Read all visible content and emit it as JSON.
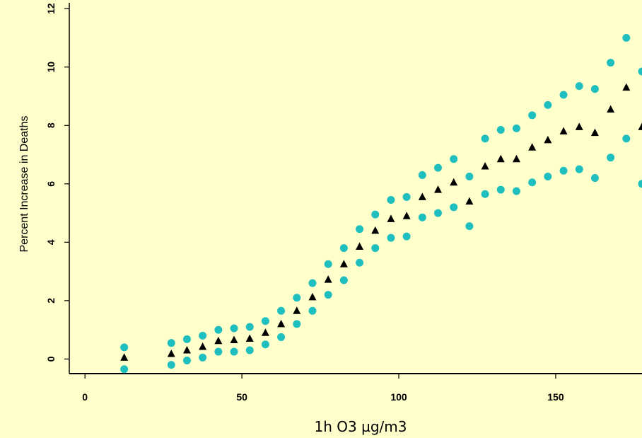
{
  "chart_data": {
    "type": "scatter",
    "xlabel": "1h O3 µg/m3",
    "ylabel": "Percent Increase in Deaths",
    "xlim": [
      -5,
      177.5
    ],
    "ylim": [
      -0.5,
      12.2
    ],
    "x_ticks": [
      0,
      50,
      100,
      150
    ],
    "y_ticks": [
      0,
      2,
      4,
      6,
      8,
      10,
      12
    ],
    "grid": false,
    "colors": {
      "background": "#ffffcc",
      "ci": "#1fbfbf",
      "estimate": "#000000"
    },
    "x": [
      12.5,
      27.5,
      32.5,
      37.5,
      42.5,
      47.5,
      52.5,
      57.5,
      62.5,
      67.5,
      72.5,
      77.5,
      82.5,
      87.5,
      92.5,
      97.5,
      102.5,
      107.5,
      112.5,
      117.5,
      122.5,
      127.5,
      132.5,
      137.5,
      142.5,
      147.5,
      152.5,
      157.5,
      162.5,
      167.5,
      172.5,
      177.5
    ],
    "series": [
      {
        "marker": "circle",
        "values": [
          0.4,
          0.55,
          0.68,
          0.8,
          1.0,
          1.05,
          1.1,
          1.3,
          1.65,
          2.1,
          2.6,
          3.25,
          3.8,
          4.45,
          4.95,
          5.45,
          5.55,
          6.3,
          6.55,
          6.85,
          6.25,
          7.55,
          7.85,
          7.9,
          8.35,
          8.7,
          9.05,
          9.35,
          9.25,
          10.15,
          11.0,
          9.85
        ]
      },
      {
        "marker": "triangle",
        "values": [
          0.05,
          0.18,
          0.3,
          0.42,
          0.62,
          0.65,
          0.7,
          0.9,
          1.2,
          1.65,
          2.12,
          2.72,
          3.25,
          3.85,
          4.4,
          4.8,
          4.9,
          5.55,
          5.8,
          6.05,
          5.4,
          6.6,
          6.85,
          6.85,
          7.25,
          7.5,
          7.8,
          7.95,
          7.75,
          8.55,
          9.3,
          7.95
        ]
      },
      {
        "marker": "circle",
        "values": [
          -0.35,
          -0.2,
          -0.05,
          0.05,
          0.25,
          0.25,
          0.3,
          0.5,
          0.75,
          1.2,
          1.65,
          2.2,
          2.7,
          3.3,
          3.8,
          4.15,
          4.2,
          4.85,
          5.0,
          5.2,
          4.55,
          5.65,
          5.8,
          5.75,
          6.05,
          6.25,
          6.45,
          6.5,
          6.2,
          6.9,
          7.55,
          6.0
        ]
      }
    ]
  }
}
